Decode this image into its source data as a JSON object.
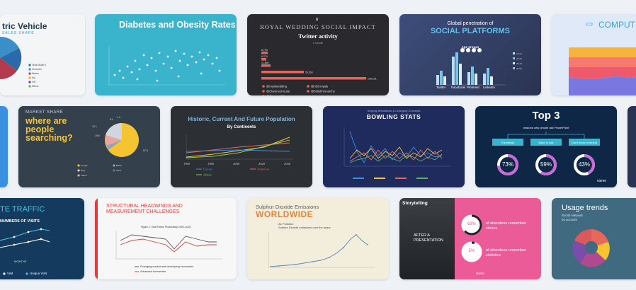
{
  "gallery": {
    "cards": [
      {
        "title": "tric Vehicle",
        "subtitle": "SALES SHARE"
      },
      {
        "title": "Diabetes and Obesity Rates"
      },
      {
        "title": "ROYAL WEDDING SOCIAL IMPACT",
        "subtitle": "Twitter activity",
        "note": "1 month",
        "bars": [
          {
            "label": "8,793",
            "value": 8793
          },
          {
            "label": "6,274",
            "value": 6274
          },
          {
            "label": "11,866",
            "value": 11866
          },
          {
            "label": "55,000",
            "value": 55000
          },
          {
            "label": "195,231",
            "value": 195231
          }
        ],
        "legend": [
          "@royalwedding",
          "@ABCroyals",
          "@ClarenceHouse",
          "@britishmonarchy",
          "@Queen_UK"
        ]
      },
      {
        "title_line1": "Global penetration of",
        "title_line2": "SOCIAL PLATFORMS",
        "subtitle": "Age groups",
        "categories": [
          "Twitter",
          "Facebook",
          "Pinterest",
          "LinkedIn"
        ]
      },
      {
        "title": "COMPUTER"
      },
      {
        "label": "MARKET SHARE",
        "title_line1": "where are",
        "title_line2": "people",
        "title_line3": "searching?",
        "slices": [
          {
            "label": "67.5",
            "value": 67.5
          },
          {
            "label": "15.6",
            "value": 15.6
          },
          {
            "label": "10.1",
            "value": 10.1
          },
          {
            "label": "5.4",
            "value": 5.4
          },
          {
            "label": "1.4",
            "value": 1.4
          }
        ]
      },
      {
        "title": "Historic, Current And Future Population",
        "subtitle": "By Continents",
        "ticks": [
          "1960",
          "1980",
          "2000",
          "2020",
          "2040"
        ],
        "legend": [
          "Europe",
          "Americas",
          "Africa"
        ]
      },
      {
        "title_small": "Staging Breakdown & Changing Concepts",
        "title": "BOWLING STATS"
      },
      {
        "title": "Top 3",
        "subtitle": "reasons why people use PowerPoint",
        "items": [
          {
            "label": "Familiarity",
            "value": "73%"
          },
          {
            "label": "Ease of use",
            "value": "59%"
          },
          {
            "label": "Don't know of others",
            "value": "43%"
          }
        ],
        "brand": "visme"
      },
      {
        "title": "TE TRAFFIC",
        "subtitle": "NUMBERS OF VISITS",
        "xlabel": "MONTHS",
        "legend": [
          "Visit",
          "Unique Visit"
        ]
      },
      {
        "title_line1": "STRUCTURAL HEADWINDS AND",
        "title_line2": "MEASUREMENT CHALLENGES",
        "chart_title": "Figure 1: Total Factor Productivity 2000–2016",
        "legend": [
          "Emerging market and developing economies",
          "Advanced economies"
        ]
      },
      {
        "title": "Sulphur Dioxide Emissions",
        "title_big": "WORLDWIDE",
        "subtitle1": "Air Pollution",
        "subtitle2": "Sulphur Dioxide emissions over the years"
      },
      {
        "label": "Storytelling",
        "stat1": "of attendees remember stories",
        "stat2": "of attendees remember statistics",
        "bubble1": "63%",
        "bubble2": "5%",
        "caption_line1": "AFTER A",
        "caption_line2": "PRESENTATION",
        "brand": "visme"
      },
      {
        "title": "Usage trends",
        "subtitle_line1": "Social Network",
        "subtitle_line2": "by account"
      }
    ]
  },
  "colors": {
    "page_bg": "#eef1f6",
    "teal": "#3aafc9",
    "navy": "#1b1f3a",
    "coral": "#e8675b",
    "yellow": "#f4c531",
    "visme_blue": "#0e5ba8"
  }
}
